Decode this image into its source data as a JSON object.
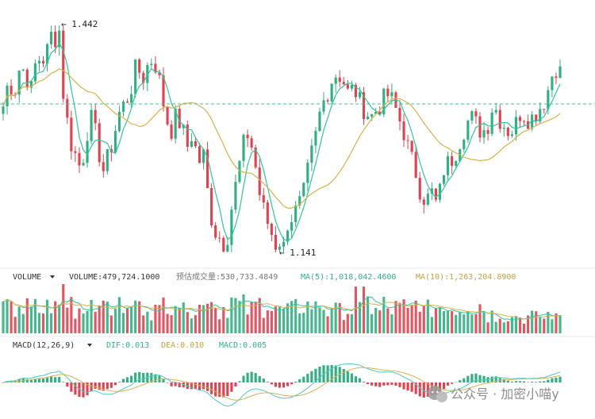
{
  "chart_data": [
    {
      "type": "candlestick",
      "panel": "price",
      "annotations": {
        "high_label": "1.442",
        "low_label": "1.141"
      },
      "high": 1.442,
      "low": 1.141,
      "reference_line": 1.375,
      "close_path": [
        1.335,
        1.37,
        1.352,
        1.388,
        1.38,
        1.355,
        1.4,
        1.395,
        1.41,
        1.44,
        1.4,
        1.34,
        1.29,
        1.27,
        1.25,
        1.3,
        1.32,
        1.28,
        1.25,
        1.27,
        1.3,
        1.33,
        1.34,
        1.36,
        1.39,
        1.37,
        1.39,
        1.4,
        1.37,
        1.33,
        1.3,
        1.32,
        1.31,
        1.28,
        1.3,
        1.26,
        1.27,
        1.2,
        1.17,
        1.16,
        1.15,
        1.2,
        1.24,
        1.28,
        1.3,
        1.27,
        1.22,
        1.19,
        1.17,
        1.15,
        1.16,
        1.18,
        1.19,
        1.2,
        1.22,
        1.26,
        1.29,
        1.33,
        1.35,
        1.37,
        1.38,
        1.37,
        1.35,
        1.36,
        1.34,
        1.33,
        1.32,
        1.33,
        1.34,
        1.35,
        1.34,
        1.32,
        1.3,
        1.27,
        1.25,
        1.22,
        1.21,
        1.22,
        1.2,
        1.25,
        1.26,
        1.27,
        1.29,
        1.31,
        1.32,
        1.31,
        1.3,
        1.31,
        1.34,
        1.32,
        1.31,
        1.3,
        1.31,
        1.33,
        1.32,
        1.32,
        1.33,
        1.34,
        1.36,
        1.39,
        1.38
      ],
      "moving_averages": [
        {
          "period": "short",
          "color": "#32c59a"
        },
        {
          "period": "long",
          "color": "#d7b24d"
        }
      ]
    },
    {
      "type": "bar",
      "panel": "volume",
      "indicator": "VOLUME",
      "volume": "479,724.1000",
      "estimated_volume": "530,733.4849",
      "ma5": "1,018,042.4600",
      "ma10": "1,263,204.8900"
    },
    {
      "type": "bar",
      "panel": "macd",
      "indicator": "MACD(12,26,9)",
      "dif": "0.013",
      "dea": "0.010",
      "macd": "0.005"
    }
  ],
  "labels": {
    "high": "← 1.442",
    "low": "← 1.141",
    "volume_title": "VOLUME",
    "volume_value": "VOLUME:479,724.1000",
    "estimated_volume": "预估成交量:530,733.4849",
    "ma5": "MA(5):1,018,042.4600",
    "ma10": "MA(10):1,263,204.8900",
    "macd_title": "MACD(12,26,9)",
    "dif": "DIF:0.013",
    "dea": "DEA:0.010",
    "macd": "MACD:0.005",
    "watermark": "公众号 · 加密小喵y"
  },
  "colors": {
    "up": "#30b080",
    "down": "#e0434f",
    "ma_short": "#32c59a",
    "ma_long": "#d7b24d",
    "ma5_text": "#2bb38c",
    "ma10_text": "#c9a23d",
    "dif_line": "#4dc9c0",
    "dea_line": "#d8b356",
    "reference": "#40c09a"
  },
  "icons": {
    "volume_menu": "caret-down-icon",
    "macd_menu": "caret-down-icon",
    "watermark": "wechat-icon"
  }
}
